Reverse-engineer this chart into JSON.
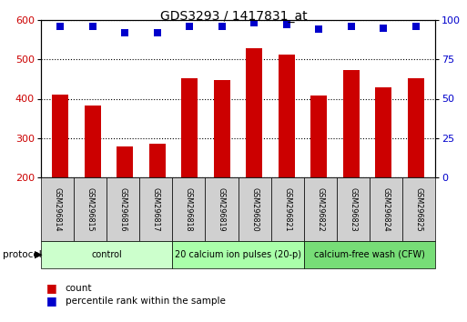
{
  "title": "GDS3293 / 1417831_at",
  "categories": [
    "GSM296814",
    "GSM296815",
    "GSM296816",
    "GSM296817",
    "GSM296818",
    "GSM296819",
    "GSM296820",
    "GSM296821",
    "GSM296822",
    "GSM296823",
    "GSM296824",
    "GSM296825"
  ],
  "bar_values": [
    410,
    382,
    278,
    285,
    452,
    448,
    528,
    512,
    408,
    472,
    430,
    452
  ],
  "percentile_values": [
    96,
    96,
    92,
    92,
    96,
    96,
    98,
    97,
    94,
    96,
    95,
    96
  ],
  "bar_color": "#cc0000",
  "dot_color": "#0000cc",
  "ylim_left": [
    200,
    600
  ],
  "ylim_right": [
    0,
    100
  ],
  "yticks_left": [
    200,
    300,
    400,
    500,
    600
  ],
  "yticks_right": [
    0,
    25,
    50,
    75,
    100
  ],
  "groups": [
    {
      "label": "control",
      "start": 0,
      "end": 4,
      "color": "#ccffcc"
    },
    {
      "label": "20 calcium ion pulses (20-p)",
      "start": 4,
      "end": 8,
      "color": "#aaffaa"
    },
    {
      "label": "calcium-free wash (CFW)",
      "start": 8,
      "end": 12,
      "color": "#77dd77"
    }
  ],
  "legend_count_label": "count",
  "legend_pct_label": "percentile rank within the sample",
  "protocol_label": "protocol",
  "background_color": "#ffffff",
  "tick_label_color_left": "#cc0000",
  "tick_label_color_right": "#0000cc",
  "bar_width": 0.5
}
